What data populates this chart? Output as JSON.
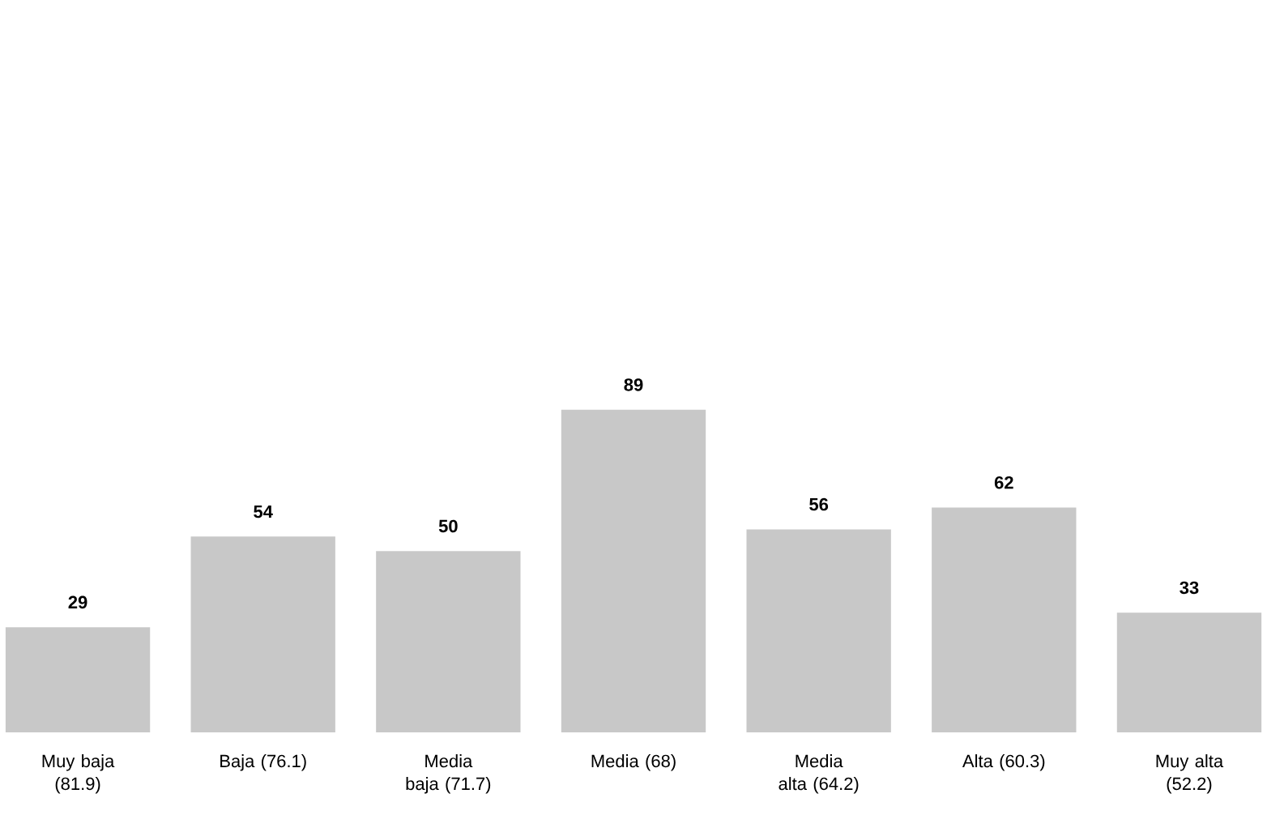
{
  "chart_data": {
    "type": "bar",
    "categories": [
      "Muy baja (81.9)",
      "Baja (76.1)",
      "Media baja (71.7)",
      "Media (68)",
      "Media alta (64.2)",
      "Alta (60.3)",
      "Muy alta (52.2)"
    ],
    "values": [
      29,
      54,
      50,
      89,
      56,
      62,
      33
    ],
    "color": "#c8c8c8",
    "data_labels": true
  }
}
